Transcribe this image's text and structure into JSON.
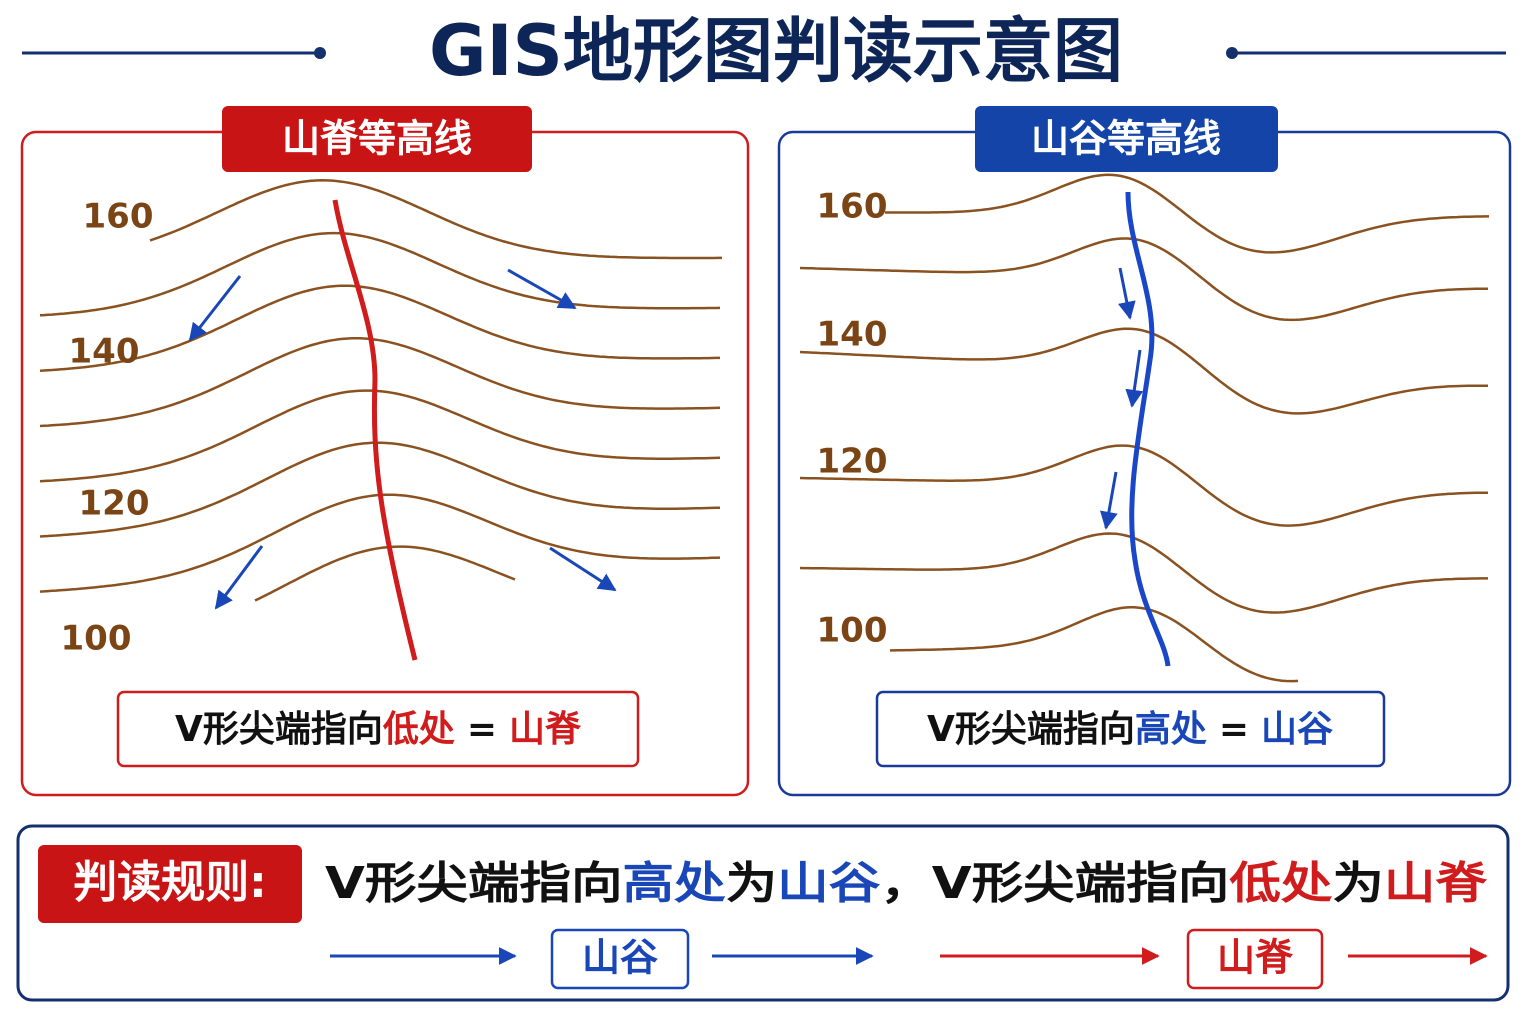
{
  "title": "GIS地形图判读示意图",
  "panels": [
    {
      "title": "山脊等高线",
      "labels": [
        "160",
        "140",
        "120",
        "100"
      ],
      "caption": [
        "V形尖端指向",
        "低处",
        "=",
        "山脊"
      ]
    },
    {
      "title": "山谷等高线",
      "labels": [
        "160",
        "140",
        "120",
        "100"
      ],
      "caption": [
        "V形尖端指向",
        "高处",
        "=",
        "山谷"
      ]
    }
  ],
  "rule": {
    "label": "判读规则:",
    "text": [
      "V形尖端指向",
      "高处",
      "为",
      "山谷",
      "，",
      "V形尖端指向",
      "低处",
      "为",
      "山脊"
    ],
    "tags": [
      "山谷",
      "山脊"
    ]
  }
}
